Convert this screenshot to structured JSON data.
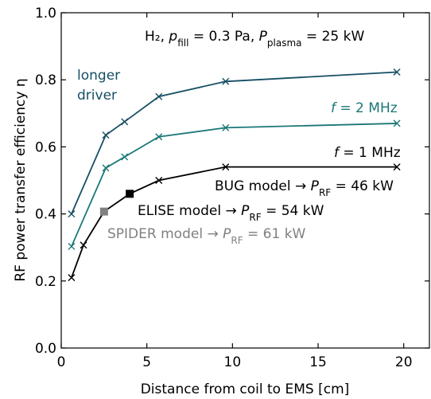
{
  "chart_data": {
    "type": "line",
    "xlabel": "Distance from coil to EMS [cm]",
    "ylabel": "RF power transfer efficiency η",
    "xlim": [
      0,
      21.5
    ],
    "ylim": [
      0,
      1.0
    ],
    "xticks": [
      0,
      5,
      10,
      15,
      20
    ],
    "yticks": [
      0.0,
      0.2,
      0.4,
      0.6,
      0.8,
      1.0
    ],
    "xtick_labels": [
      "0",
      "5",
      "10",
      "15",
      "20"
    ],
    "ytick_labels": [
      "0.0",
      "0.2",
      "0.4",
      "0.6",
      "0.8",
      "1.0"
    ],
    "grid": false,
    "series": [
      {
        "name": "longer driver",
        "color": "#164e63",
        "x": [
          0.6,
          2.6,
          3.7,
          5.7,
          9.6,
          19.6
        ],
        "y": [
          0.4,
          0.635,
          0.675,
          0.75,
          0.795,
          0.823
        ]
      },
      {
        "name": "f = 2 MHz",
        "color": "#1b7777",
        "x": [
          0.6,
          2.6,
          3.7,
          5.7,
          9.6,
          19.6
        ],
        "y": [
          0.303,
          0.537,
          0.57,
          0.63,
          0.657,
          0.67
        ]
      },
      {
        "name": "f = 1 MHz",
        "color": "#000000",
        "x": [
          0.6,
          1.3,
          2.5,
          4.0,
          5.7,
          9.6,
          19.6
        ],
        "y": [
          0.21,
          0.307,
          0.407,
          0.46,
          0.5,
          0.54,
          0.54
        ]
      }
    ],
    "highlight_points": [
      {
        "x": 2.5,
        "y": 0.407,
        "color": "#808080",
        "marker": "square"
      },
      {
        "x": 4.0,
        "y": 0.46,
        "color": "#000000",
        "marker": "square"
      }
    ],
    "annotations": {
      "condition": "H₂, p_fill = 0.3 Pa, P_plasma = 25 kW",
      "longer_driver_line1": "longer",
      "longer_driver_line2": "driver",
      "f2": "f = 2 MHz",
      "f1": "f = 1 MHz",
      "bug": "BUG model → P_RF = 46 kW",
      "elise": "ELISE model → P_RF = 54 kW",
      "spider": "SPIDER model → P_RF = 61 kW"
    },
    "annotation_colors": {
      "condition": "#000000",
      "longer_driver": "#164e63",
      "f2": "#1b7777",
      "f1": "#000000",
      "bug": "#000000",
      "elise": "#000000",
      "spider": "#808080"
    }
  }
}
